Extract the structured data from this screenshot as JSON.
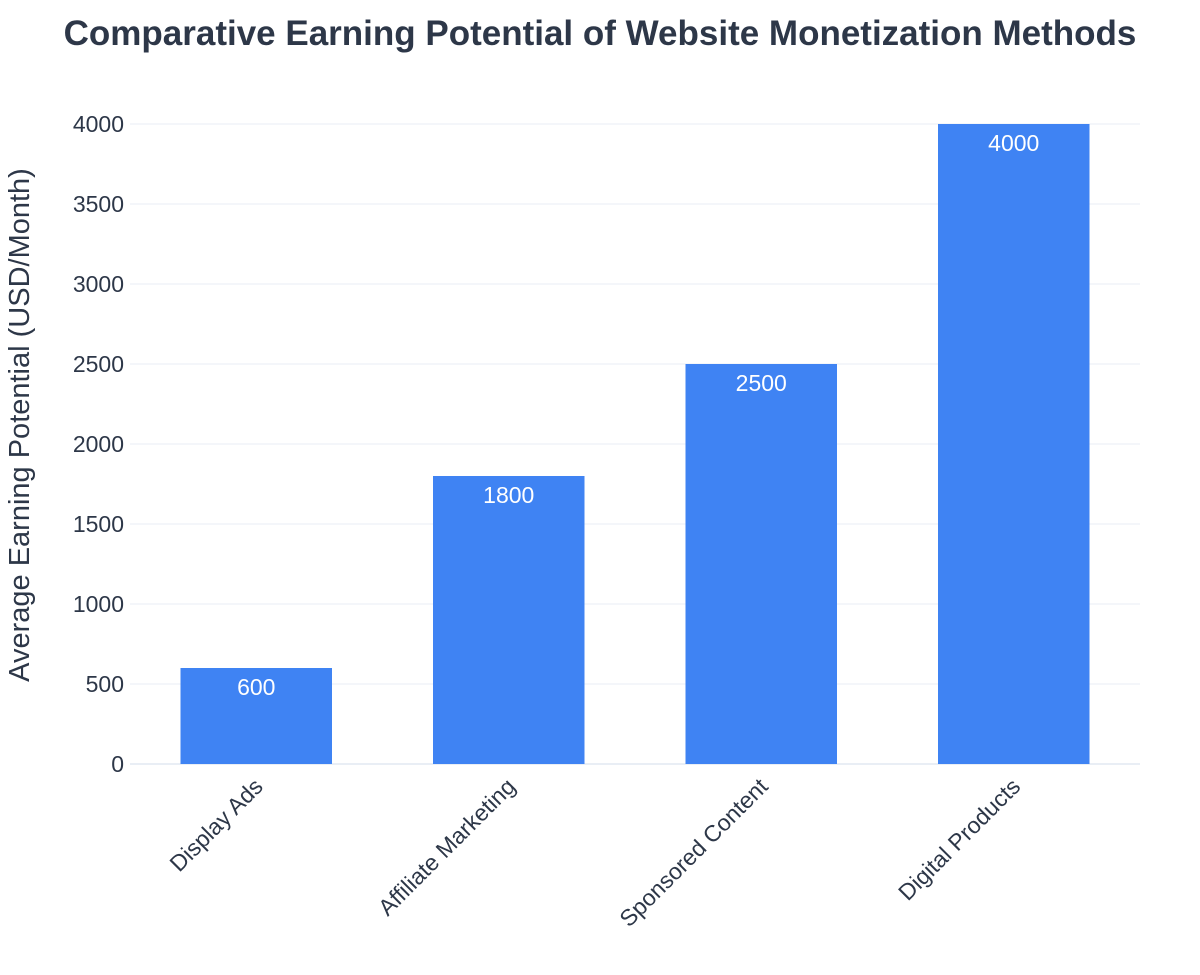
{
  "chart_data": {
    "type": "bar",
    "title": "Comparative Earning Potential of Website Monetization Methods",
    "xlabel": "",
    "ylabel": "Average Earning Potential (USD/Month)",
    "categories": [
      "Display Ads",
      "Affiliate Marketing",
      "Sponsored Content",
      "Digital Products"
    ],
    "values": [
      600,
      1800,
      2500,
      4000
    ],
    "data_labels": [
      "600",
      "1800",
      "2500",
      "4000"
    ],
    "ylim": [
      0,
      4000
    ],
    "yticks": [
      0,
      500,
      1000,
      1500,
      2000,
      2500,
      3000,
      3500,
      4000
    ],
    "ytick_labels": [
      "0",
      "500",
      "1000",
      "1500",
      "2000",
      "2500",
      "3000",
      "3500",
      "4000"
    ],
    "grid": true,
    "legend": "none",
    "colors": {
      "bar": "#3f83f3",
      "grid": "#e9eef5",
      "text": "#2d3748",
      "bar_label": "#ffffff"
    }
  }
}
